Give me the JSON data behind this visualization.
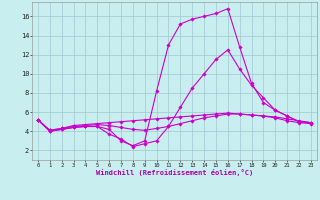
{
  "bg_color": "#c8eef0",
  "line_color": "#cc00cc",
  "grid_color": "#a0c8d0",
  "xlabel": "Windchill (Refroidissement éolien,°C)",
  "xlabel_color": "#aa00aa",
  "xlim": [
    -0.5,
    23.5
  ],
  "ylim": [
    1.0,
    17.5
  ],
  "xticks": [
    0,
    1,
    2,
    3,
    4,
    5,
    6,
    7,
    8,
    9,
    10,
    11,
    12,
    13,
    14,
    15,
    16,
    17,
    18,
    19,
    20,
    21,
    22,
    23
  ],
  "yticks": [
    2,
    4,
    6,
    8,
    10,
    12,
    14,
    16
  ],
  "lines": [
    {
      "x": [
        0,
        1,
        2,
        3,
        4,
        5,
        6,
        7,
        8,
        9,
        10,
        11,
        12,
        13,
        14,
        15,
        16,
        17,
        18,
        19,
        20,
        21,
        22,
        23
      ],
      "y": [
        5.2,
        4.1,
        4.3,
        4.6,
        4.7,
        4.8,
        4.9,
        5.0,
        5.1,
        5.2,
        5.3,
        5.4,
        5.5,
        5.6,
        5.7,
        5.8,
        5.9,
        5.8,
        5.7,
        5.6,
        5.5,
        5.3,
        5.1,
        4.9
      ]
    },
    {
      "x": [
        0,
        1,
        2,
        3,
        4,
        5,
        6,
        7,
        8,
        9,
        10,
        11,
        12,
        13,
        14,
        15,
        16,
        17,
        18,
        19,
        20,
        21,
        22,
        23
      ],
      "y": [
        5.2,
        4.1,
        4.3,
        4.5,
        4.6,
        4.7,
        4.6,
        4.4,
        4.2,
        4.1,
        4.3,
        4.5,
        4.8,
        5.1,
        5.4,
        5.6,
        5.8,
        5.8,
        5.7,
        5.6,
        5.4,
        5.1,
        4.9,
        4.8
      ]
    },
    {
      "x": [
        0,
        1,
        2,
        3,
        4,
        5,
        6,
        7,
        8,
        9,
        10,
        11,
        12,
        13,
        14,
        15,
        16,
        17,
        18,
        19,
        20,
        21,
        22,
        23
      ],
      "y": [
        5.2,
        4.0,
        4.2,
        4.4,
        4.5,
        4.5,
        4.2,
        3.0,
        2.5,
        3.0,
        8.2,
        13.0,
        15.2,
        15.7,
        16.0,
        16.3,
        16.8,
        12.8,
        9.0,
        7.0,
        6.2,
        5.6,
        5.0,
        4.9
      ]
    },
    {
      "x": [
        0,
        1,
        2,
        3,
        4,
        5,
        6,
        7,
        8,
        9,
        10,
        11,
        12,
        13,
        14,
        15,
        16,
        17,
        18,
        19,
        20,
        21,
        22,
        23
      ],
      "y": [
        5.2,
        4.0,
        4.2,
        4.4,
        4.5,
        4.5,
        3.7,
        3.2,
        2.4,
        2.7,
        3.0,
        4.5,
        6.5,
        8.5,
        10.0,
        11.5,
        12.5,
        10.5,
        8.8,
        7.5,
        6.2,
        5.6,
        5.0,
        4.9
      ]
    }
  ]
}
